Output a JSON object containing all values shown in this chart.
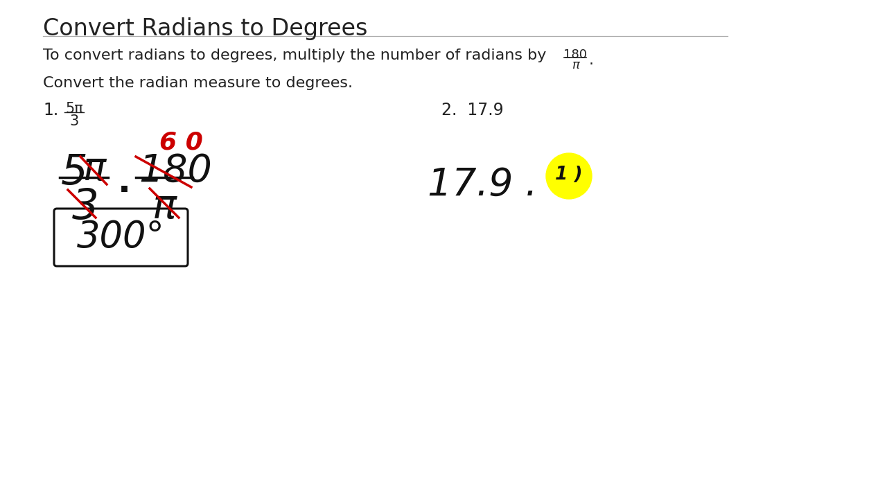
{
  "title": "Convert Radians to Degrees",
  "subtitle_line": "To convert radians to degrees, multiply the number of radians by",
  "fraction_num": "180",
  "fraction_den": "π",
  "instruction": "Convert the radian measure to degrees.",
  "prob1_label": "1.",
  "prob1_frac_num": "5π",
  "prob1_frac_den": "3",
  "prob2_label": "2.  17.9",
  "handwritten_color": "#cc0000",
  "black_color": "#111111",
  "background_color": "#ffffff",
  "text_color": "#222222",
  "title_fontsize": 24,
  "body_fontsize": 16,
  "hw_fontsize": 38,
  "hw_small_fontsize": 26
}
